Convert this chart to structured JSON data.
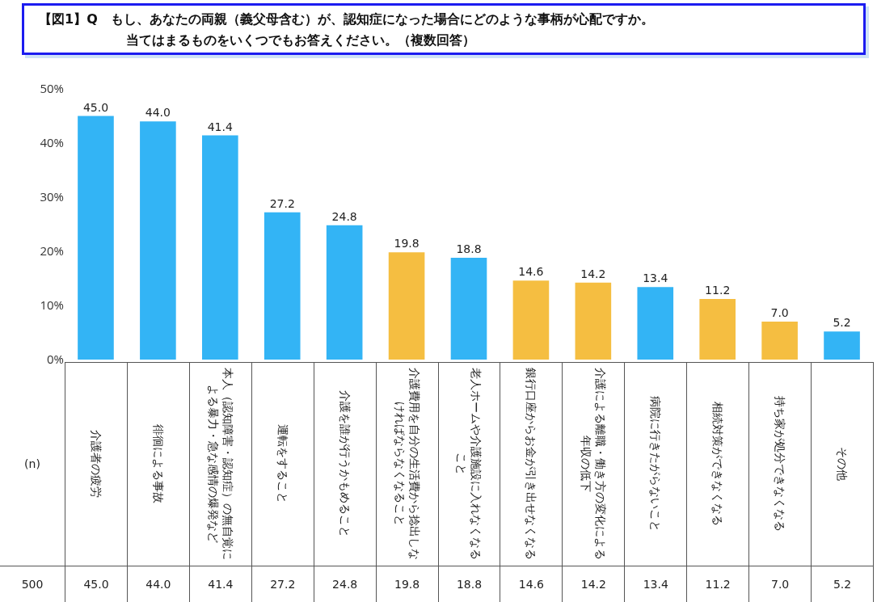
{
  "chart_data": {
    "type": "bar",
    "title": "【図1】Q　もし、あなたの両親（義父母含む）が、認知症になった場合にどのような事柄が心配ですか。",
    "subtitle": "当てはまるものをいくつでもお答えください。（複数回答）",
    "categories": [
      "介護者の疲労",
      "徘徊による事故",
      "本人（認知障害・認知症）の無自覚による暴力・急な感情の爆発など",
      "運転をすること",
      "介護を誰が行うかもめること",
      "介護費用を自分の生活費から捻出しなければならなくなること",
      "老人ホームや介護施設に入れなくなること",
      "銀行口座からお金が引き出せなくなる",
      "介護による離職・働き方の変化による年収の低下",
      "病院に行きたがらないこと",
      "相続対策ができなくなる",
      "持ち家が処分できなくなる",
      "その他"
    ],
    "values": [
      45.0,
      44.0,
      41.4,
      27.2,
      24.8,
      19.8,
      18.8,
      14.6,
      14.2,
      13.4,
      11.2,
      7.0,
      5.2
    ],
    "value_labels": [
      "45.0",
      "44.0",
      "41.4",
      "27.2",
      "24.8",
      "19.8",
      "18.8",
      "14.6",
      "14.2",
      "13.4",
      "11.2",
      "7.0",
      "5.2"
    ],
    "colors": [
      "#33b4f5",
      "#33b4f5",
      "#33b4f5",
      "#33b4f5",
      "#33b4f5",
      "#f5be41",
      "#33b4f5",
      "#f5be41",
      "#f5be41",
      "#33b4f5",
      "#f5be41",
      "#f5be41",
      "#33b4f5"
    ],
    "ylim": [
      0,
      50
    ],
    "yticks": [
      {
        "value": 0,
        "label": "0%"
      },
      {
        "value": 10,
        "label": "10%"
      },
      {
        "value": 20,
        "label": "20%"
      },
      {
        "value": 30,
        "label": "30%"
      },
      {
        "value": 40,
        "label": "40%"
      },
      {
        "value": 50,
        "label": "50%"
      }
    ],
    "grid": false,
    "annotations": [
      "(n)",
      "500"
    ]
  }
}
